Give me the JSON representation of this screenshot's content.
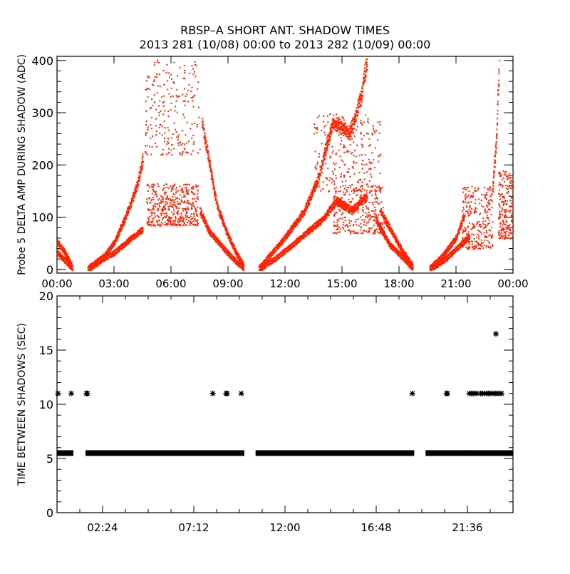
{
  "title": "RBSP–A SHORT ANT. SHADOW TIMES",
  "subtitle": "2013 281 (10/08) 00:00 to 2013 282 (10/09) 00:00",
  "colors": {
    "points": "#ff2200",
    "stars": "#000000",
    "axes": "#000000"
  },
  "chart_data": [
    {
      "type": "scatter",
      "ylabel": "Probe 5 DELTA AMP DURING SHADOW (ADC)",
      "xlabel": "",
      "x_units": "hours",
      "xlim": [
        0,
        24
      ],
      "ylim": [
        -7,
        408
      ],
      "yticks": [
        0,
        100,
        200,
        300,
        400
      ],
      "ytick_labels": [
        "0",
        "100",
        "200",
        "300",
        "400"
      ],
      "xticks": [
        0,
        3,
        6,
        9,
        12,
        15,
        18,
        21,
        24
      ],
      "xtick_labels": [
        "00:00",
        "03:00",
        "06:00",
        "09:00",
        "12:00",
        "15:00",
        "18:00",
        "21:00",
        "00:00"
      ],
      "traces": [
        {
          "name": "pass1-upper",
          "knots": [
            [
              0,
              50
            ],
            [
              0.4,
              30
            ],
            [
              0.75,
              5
            ]
          ]
        },
        {
          "name": "pass1-lower",
          "knots": [
            [
              0,
              30
            ],
            [
              0.4,
              15
            ],
            [
              0.8,
              0
            ]
          ]
        },
        {
          "name": "pass2-rise-upper",
          "knots": [
            [
              1.6,
              0
            ],
            [
              2.5,
              25
            ],
            [
              3,
              50
            ],
            [
              3.6,
              100
            ],
            [
              4.2,
              160
            ],
            [
              4.5,
              210
            ]
          ]
        },
        {
          "name": "pass2-rise-lower",
          "knots": [
            [
              1.7,
              0
            ],
            [
              2.5,
              20
            ],
            [
              3,
              30
            ],
            [
              3.8,
              55
            ],
            [
              4.5,
              75
            ]
          ]
        },
        {
          "name": "pass2-fall-upper",
          "knots": [
            [
              7.6,
              280
            ],
            [
              8,
              200
            ],
            [
              8.4,
              120
            ],
            [
              8.9,
              70
            ],
            [
              9.4,
              30
            ],
            [
              9.8,
              5
            ]
          ]
        },
        {
          "name": "pass2-fall-lower",
          "knots": [
            [
              7.5,
              110
            ],
            [
              8,
              70
            ],
            [
              8.6,
              45
            ],
            [
              9.2,
              20
            ],
            [
              9.8,
              0
            ]
          ]
        },
        {
          "name": "pass3-rise-upper",
          "knots": [
            [
              10.6,
              0
            ],
            [
              11.3,
              30
            ],
            [
              12,
              60
            ],
            [
              13,
              110
            ],
            [
              13.7,
              170
            ],
            [
              14.5,
              280
            ],
            [
              15.4,
              260
            ],
            [
              16,
              330
            ],
            [
              16.3,
              400
            ]
          ]
        },
        {
          "name": "pass3-rise-lower",
          "knots": [
            [
              10.7,
              0
            ],
            [
              11.5,
              20
            ],
            [
              12.2,
              40
            ],
            [
              13,
              65
            ],
            [
              14,
              95
            ],
            [
              14.7,
              130
            ],
            [
              15.5,
              110
            ],
            [
              16.3,
              140
            ]
          ]
        },
        {
          "name": "pass3-fall-upper",
          "knots": [
            [
              17,
              110
            ],
            [
              17.6,
              70
            ],
            [
              18.2,
              30
            ],
            [
              18.7,
              5
            ]
          ]
        },
        {
          "name": "pass3-fall-lower",
          "knots": [
            [
              16.8,
              90
            ],
            [
              17.5,
              45
            ],
            [
              18.2,
              20
            ],
            [
              18.7,
              0
            ]
          ]
        },
        {
          "name": "pass4-rise-upper",
          "knots": [
            [
              19.6,
              0
            ],
            [
              20.3,
              25
            ],
            [
              21,
              60
            ],
            [
              21.4,
              100
            ]
          ]
        },
        {
          "name": "pass4-rise-lower",
          "knots": [
            [
              19.7,
              0
            ],
            [
              20.5,
              20
            ],
            [
              21.2,
              45
            ],
            [
              21.7,
              60
            ]
          ]
        },
        {
          "name": "pass4-spike",
          "knots": [
            [
              22.9,
              150
            ],
            [
              23.1,
              250
            ],
            [
              23.25,
              400
            ]
          ]
        }
      ],
      "clouds": [
        {
          "name": "pass2-upper-cloud",
          "x": [
            4.6,
            7.5
          ],
          "y": [
            220,
            408
          ],
          "count": 220
        },
        {
          "name": "pass2-core-cloud",
          "x": [
            4.7,
            7.4
          ],
          "y": [
            85,
            165
          ],
          "count": 450
        },
        {
          "name": "pass3-upper-cloud",
          "x": [
            13.5,
            17.0
          ],
          "y": [
            150,
            300
          ],
          "count": 260
        },
        {
          "name": "pass3-core-cloud",
          "x": [
            14.5,
            17.2
          ],
          "y": [
            70,
            160
          ],
          "count": 300
        },
        {
          "name": "pass4-cloud",
          "x": [
            21.3,
            22.9
          ],
          "y": [
            40,
            160
          ],
          "count": 280
        },
        {
          "name": "pass4-tail-cloud",
          "x": [
            23.2,
            24.0
          ],
          "y": [
            60,
            190
          ],
          "count": 200
        }
      ]
    },
    {
      "type": "scatter",
      "ylabel": "TIME BETWEEN SHADOWS (SEC)",
      "xlabel": "",
      "x_units": "hours",
      "xlim": [
        0,
        24
      ],
      "ylim": [
        0,
        20
      ],
      "yticks": [
        0,
        5,
        10,
        15,
        20
      ],
      "ytick_labels": [
        "0",
        "5",
        "10",
        "15",
        "20"
      ],
      "xticks": [
        2.4,
        7.2,
        12,
        16.8,
        21.6
      ],
      "xtick_labels": [
        "02:24",
        "07:12",
        "12:00",
        "16:48",
        "21:36"
      ],
      "dense_runs": [
        {
          "x": [
            0.0,
            0.86
          ],
          "y": 5.5
        },
        {
          "x": [
            1.5,
            9.86
          ],
          "y": 5.5
        },
        {
          "x": [
            10.45,
            18.8
          ],
          "y": 5.5
        },
        {
          "x": [
            19.4,
            24.0
          ],
          "y": 5.5
        }
      ],
      "stars": [
        [
          0.05,
          11
        ],
        [
          0.75,
          11
        ],
        [
          1.55,
          11
        ],
        [
          1.6,
          11
        ],
        [
          8.2,
          11
        ],
        [
          8.9,
          11
        ],
        [
          8.95,
          11
        ],
        [
          9.7,
          11
        ],
        [
          18.7,
          11
        ],
        [
          20.5,
          11
        ],
        [
          20.55,
          11
        ],
        [
          21.7,
          11
        ],
        [
          21.8,
          11
        ],
        [
          21.9,
          11
        ],
        [
          22.0,
          11
        ],
        [
          22.1,
          11
        ],
        [
          22.3,
          11
        ],
        [
          22.4,
          11
        ],
        [
          22.5,
          11
        ],
        [
          22.6,
          11
        ],
        [
          22.7,
          11
        ],
        [
          22.8,
          11
        ],
        [
          22.9,
          11
        ],
        [
          23.0,
          11
        ],
        [
          23.1,
          11
        ],
        [
          23.25,
          11
        ],
        [
          23.4,
          11
        ],
        [
          23.1,
          16.5
        ],
        [
          21.75,
          5.5
        ]
      ]
    }
  ]
}
